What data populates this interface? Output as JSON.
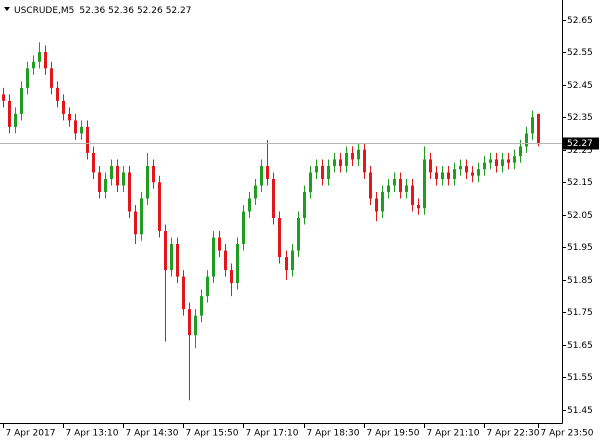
{
  "chart_data": {
    "type": "candlestick",
    "title": "USCRUDE,M5",
    "last_ohlc": [
      52.36,
      52.36,
      52.26,
      52.27
    ],
    "last_price": 52.27,
    "up_color": "#1f9e1f",
    "down_color": "#e3161b",
    "price_line_color": "#b4b4b4",
    "ylim": [
      51.41,
      52.71
    ],
    "yticks": [
      52.65,
      52.55,
      52.45,
      52.35,
      52.25,
      52.15,
      52.05,
      51.95,
      51.85,
      51.75,
      51.65,
      51.55,
      51.45
    ],
    "xlim": [
      -0.5,
      93
    ],
    "xticks": [
      {
        "value": 0,
        "label": "7 Apr 2017"
      },
      {
        "value": 10,
        "label": "7 Apr 13:10"
      },
      {
        "value": 20,
        "label": "7 Apr 14:30"
      },
      {
        "value": 30,
        "label": "7 Apr 15:50"
      },
      {
        "value": 40,
        "label": "7 Apr 17:10"
      },
      {
        "value": 50,
        "label": "7 Apr 18:30"
      },
      {
        "value": 60,
        "label": "7 Apr 19:50"
      },
      {
        "value": 70,
        "label": "7 Apr 21:10"
      },
      {
        "value": 80,
        "label": "7 Apr 22:30"
      },
      {
        "value": 89,
        "label": "7 Apr 23:50"
      }
    ],
    "open": [
      52.42,
      52.4,
      52.32,
      52.36,
      52.44,
      52.5,
      52.52,
      52.55,
      52.5,
      52.44,
      52.4,
      52.36,
      52.34,
      52.3,
      52.32,
      52.24,
      52.18,
      52.12,
      52.16,
      52.2,
      52.14,
      52.18,
      52.06,
      51.99,
      52.1,
      52.2,
      52.15,
      52.0,
      51.88,
      51.96,
      51.86,
      51.76,
      51.68,
      51.74,
      51.8,
      51.86,
      51.98,
      51.94,
      51.88,
      51.84,
      51.96,
      52.06,
      52.1,
      52.14,
      52.2,
      52.16,
      52.04,
      51.92,
      51.88,
      51.94,
      52.04,
      52.12,
      52.18,
      52.2,
      52.16,
      52.2,
      52.22,
      52.2,
      52.24,
      52.22,
      52.25,
      52.18,
      52.1,
      52.06,
      52.12,
      52.14,
      52.16,
      52.12,
      52.14,
      52.08,
      52.07,
      52.22,
      52.18,
      52.16,
      52.18,
      52.16,
      52.19,
      52.2,
      52.18,
      52.17,
      52.19,
      52.21,
      52.22,
      52.2,
      52.22,
      52.21,
      52.23,
      52.26,
      52.3,
      52.36
    ],
    "high": [
      52.44,
      52.42,
      52.38,
      52.46,
      52.52,
      52.54,
      52.58,
      52.57,
      52.52,
      52.46,
      52.42,
      52.38,
      52.36,
      52.34,
      52.34,
      52.26,
      52.2,
      52.18,
      52.22,
      52.22,
      52.2,
      52.2,
      52.08,
      52.12,
      52.24,
      52.22,
      52.17,
      52.02,
      51.98,
      51.98,
      51.88,
      51.78,
      51.76,
      51.82,
      51.88,
      52.0,
      52.0,
      51.96,
      51.9,
      51.98,
      52.08,
      52.12,
      52.16,
      52.22,
      52.28,
      52.18,
      52.06,
      51.94,
      51.96,
      52.06,
      52.14,
      52.2,
      52.22,
      52.22,
      52.22,
      52.24,
      52.24,
      52.26,
      52.26,
      52.27,
      52.27,
      52.2,
      52.12,
      52.14,
      52.16,
      52.18,
      52.18,
      52.16,
      52.16,
      52.1,
      52.26,
      52.24,
      52.2,
      52.2,
      52.2,
      52.21,
      52.22,
      52.22,
      52.2,
      52.21,
      52.23,
      52.24,
      52.24,
      52.24,
      52.24,
      52.25,
      52.28,
      52.32,
      52.37,
      52.36
    ],
    "low": [
      52.38,
      52.3,
      52.3,
      52.34,
      52.42,
      52.48,
      52.5,
      52.48,
      52.42,
      52.38,
      52.34,
      52.32,
      52.28,
      52.28,
      52.22,
      52.16,
      52.1,
      52.1,
      52.14,
      52.12,
      52.12,
      52.04,
      51.96,
      51.97,
      52.08,
      52.13,
      51.98,
      51.66,
      51.86,
      51.84,
      51.74,
      51.48,
      51.64,
      51.72,
      51.78,
      51.84,
      51.92,
      51.86,
      51.8,
      51.82,
      51.94,
      52.04,
      52.08,
      52.12,
      52.14,
      52.02,
      51.9,
      51.85,
      51.86,
      51.92,
      52.02,
      52.1,
      52.16,
      52.14,
      52.14,
      52.18,
      52.18,
      52.18,
      52.2,
      52.2,
      52.16,
      52.08,
      52.03,
      52.04,
      52.1,
      52.12,
      52.1,
      52.1,
      52.06,
      52.05,
      52.05,
      52.16,
      52.14,
      52.14,
      52.14,
      52.14,
      52.17,
      52.16,
      52.15,
      52.15,
      52.17,
      52.19,
      52.18,
      52.18,
      52.19,
      52.19,
      52.21,
      52.24,
      52.28,
      52.26
    ],
    "close": [
      52.4,
      52.32,
      52.36,
      52.44,
      52.5,
      52.52,
      52.55,
      52.5,
      52.44,
      52.4,
      52.36,
      52.34,
      52.3,
      52.32,
      52.24,
      52.18,
      52.12,
      52.16,
      52.2,
      52.14,
      52.18,
      52.06,
      51.99,
      52.1,
      52.2,
      52.15,
      52.0,
      51.88,
      51.96,
      51.86,
      51.76,
      51.68,
      51.74,
      51.8,
      51.86,
      51.98,
      51.94,
      51.88,
      51.84,
      51.96,
      52.06,
      52.1,
      52.14,
      52.2,
      52.16,
      52.04,
      51.92,
      51.88,
      51.94,
      52.04,
      52.12,
      52.18,
      52.2,
      52.16,
      52.2,
      52.22,
      52.2,
      52.24,
      52.22,
      52.25,
      52.18,
      52.1,
      52.06,
      52.12,
      52.14,
      52.16,
      52.12,
      52.14,
      52.08,
      52.07,
      52.22,
      52.18,
      52.16,
      52.18,
      52.16,
      52.19,
      52.2,
      52.18,
      52.17,
      52.19,
      52.21,
      52.22,
      52.2,
      52.22,
      52.21,
      52.23,
      52.26,
      52.3,
      52.35,
      52.27
    ]
  }
}
